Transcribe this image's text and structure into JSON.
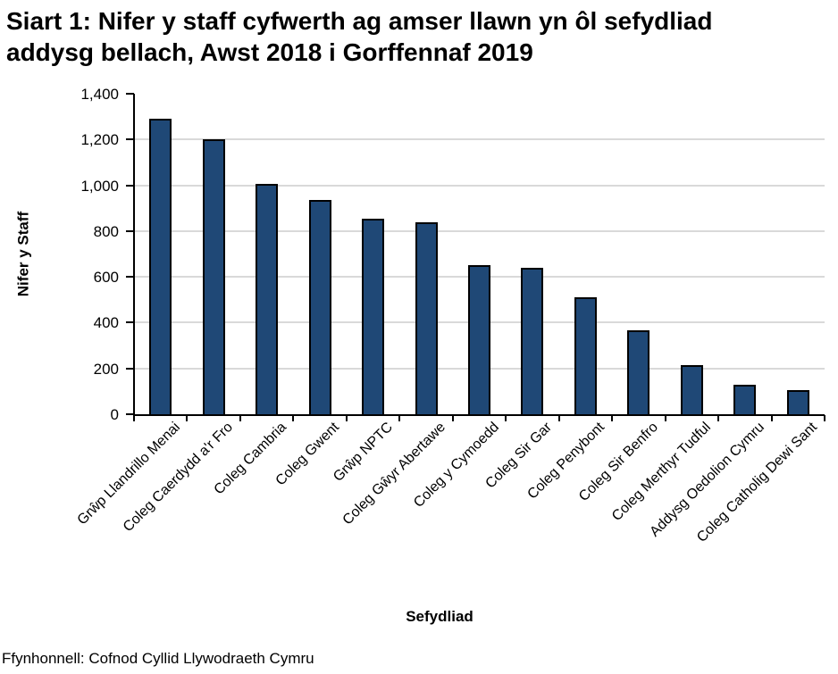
{
  "title": "Siart 1: Nifer y staff cyfwerth ag amser llawn yn ôl sefydliad addysg bellach, Awst 2018 i Gorffennaf 2019",
  "title_lines": [
    "Siart 1: Nifer y staff cyfwerth ag amser llawn yn ôl sefydliad",
    "addysg bellach, Awst 2018 i Gorffennaf 2019"
  ],
  "source": "Ffynhonnell: Cofnod Cyllid Llywodraeth Cymru",
  "chart_data": {
    "type": "bar",
    "title": "Siart 1: Nifer y staff cyfwerth ag amser llawn yn ôl sefydliad addysg bellach, Awst 2018 i Gorffennaf 2019",
    "xlabel": "Sefydliad",
    "ylabel": "Nifer y Staff",
    "categories": [
      "Grŵp Llandrillo Menai",
      "Coleg Caerdydd a'r Fro",
      "Coleg Cambria",
      "Coleg Gwent",
      "Grŵp NPTC",
      "Coleg Gŵyr Abertawe",
      "Coleg y Cymoedd",
      "Coleg Sir Gar",
      "Coleg Penybont",
      "Coleg Sir Benfro",
      "Coleg Merthyr Tudful",
      "Addysg Oedolion Cymru",
      "Coleg Catholig Dewi Sant"
    ],
    "values": [
      1290,
      1200,
      1005,
      935,
      855,
      840,
      650,
      640,
      510,
      365,
      215,
      130,
      105
    ],
    "ylim": [
      0,
      1400
    ],
    "ytick_values": [
      0,
      200,
      400,
      600,
      800,
      1000,
      1200,
      1400
    ],
    "ytick_labels": [
      "0",
      "200",
      "400",
      "600",
      "800",
      "1,000",
      "1,200",
      "1,400"
    ],
    "grid": true,
    "legend": "none",
    "bar_color": "#1F4876",
    "bar_border_color": "#000000",
    "gridline_color": "#D9D9D9"
  }
}
